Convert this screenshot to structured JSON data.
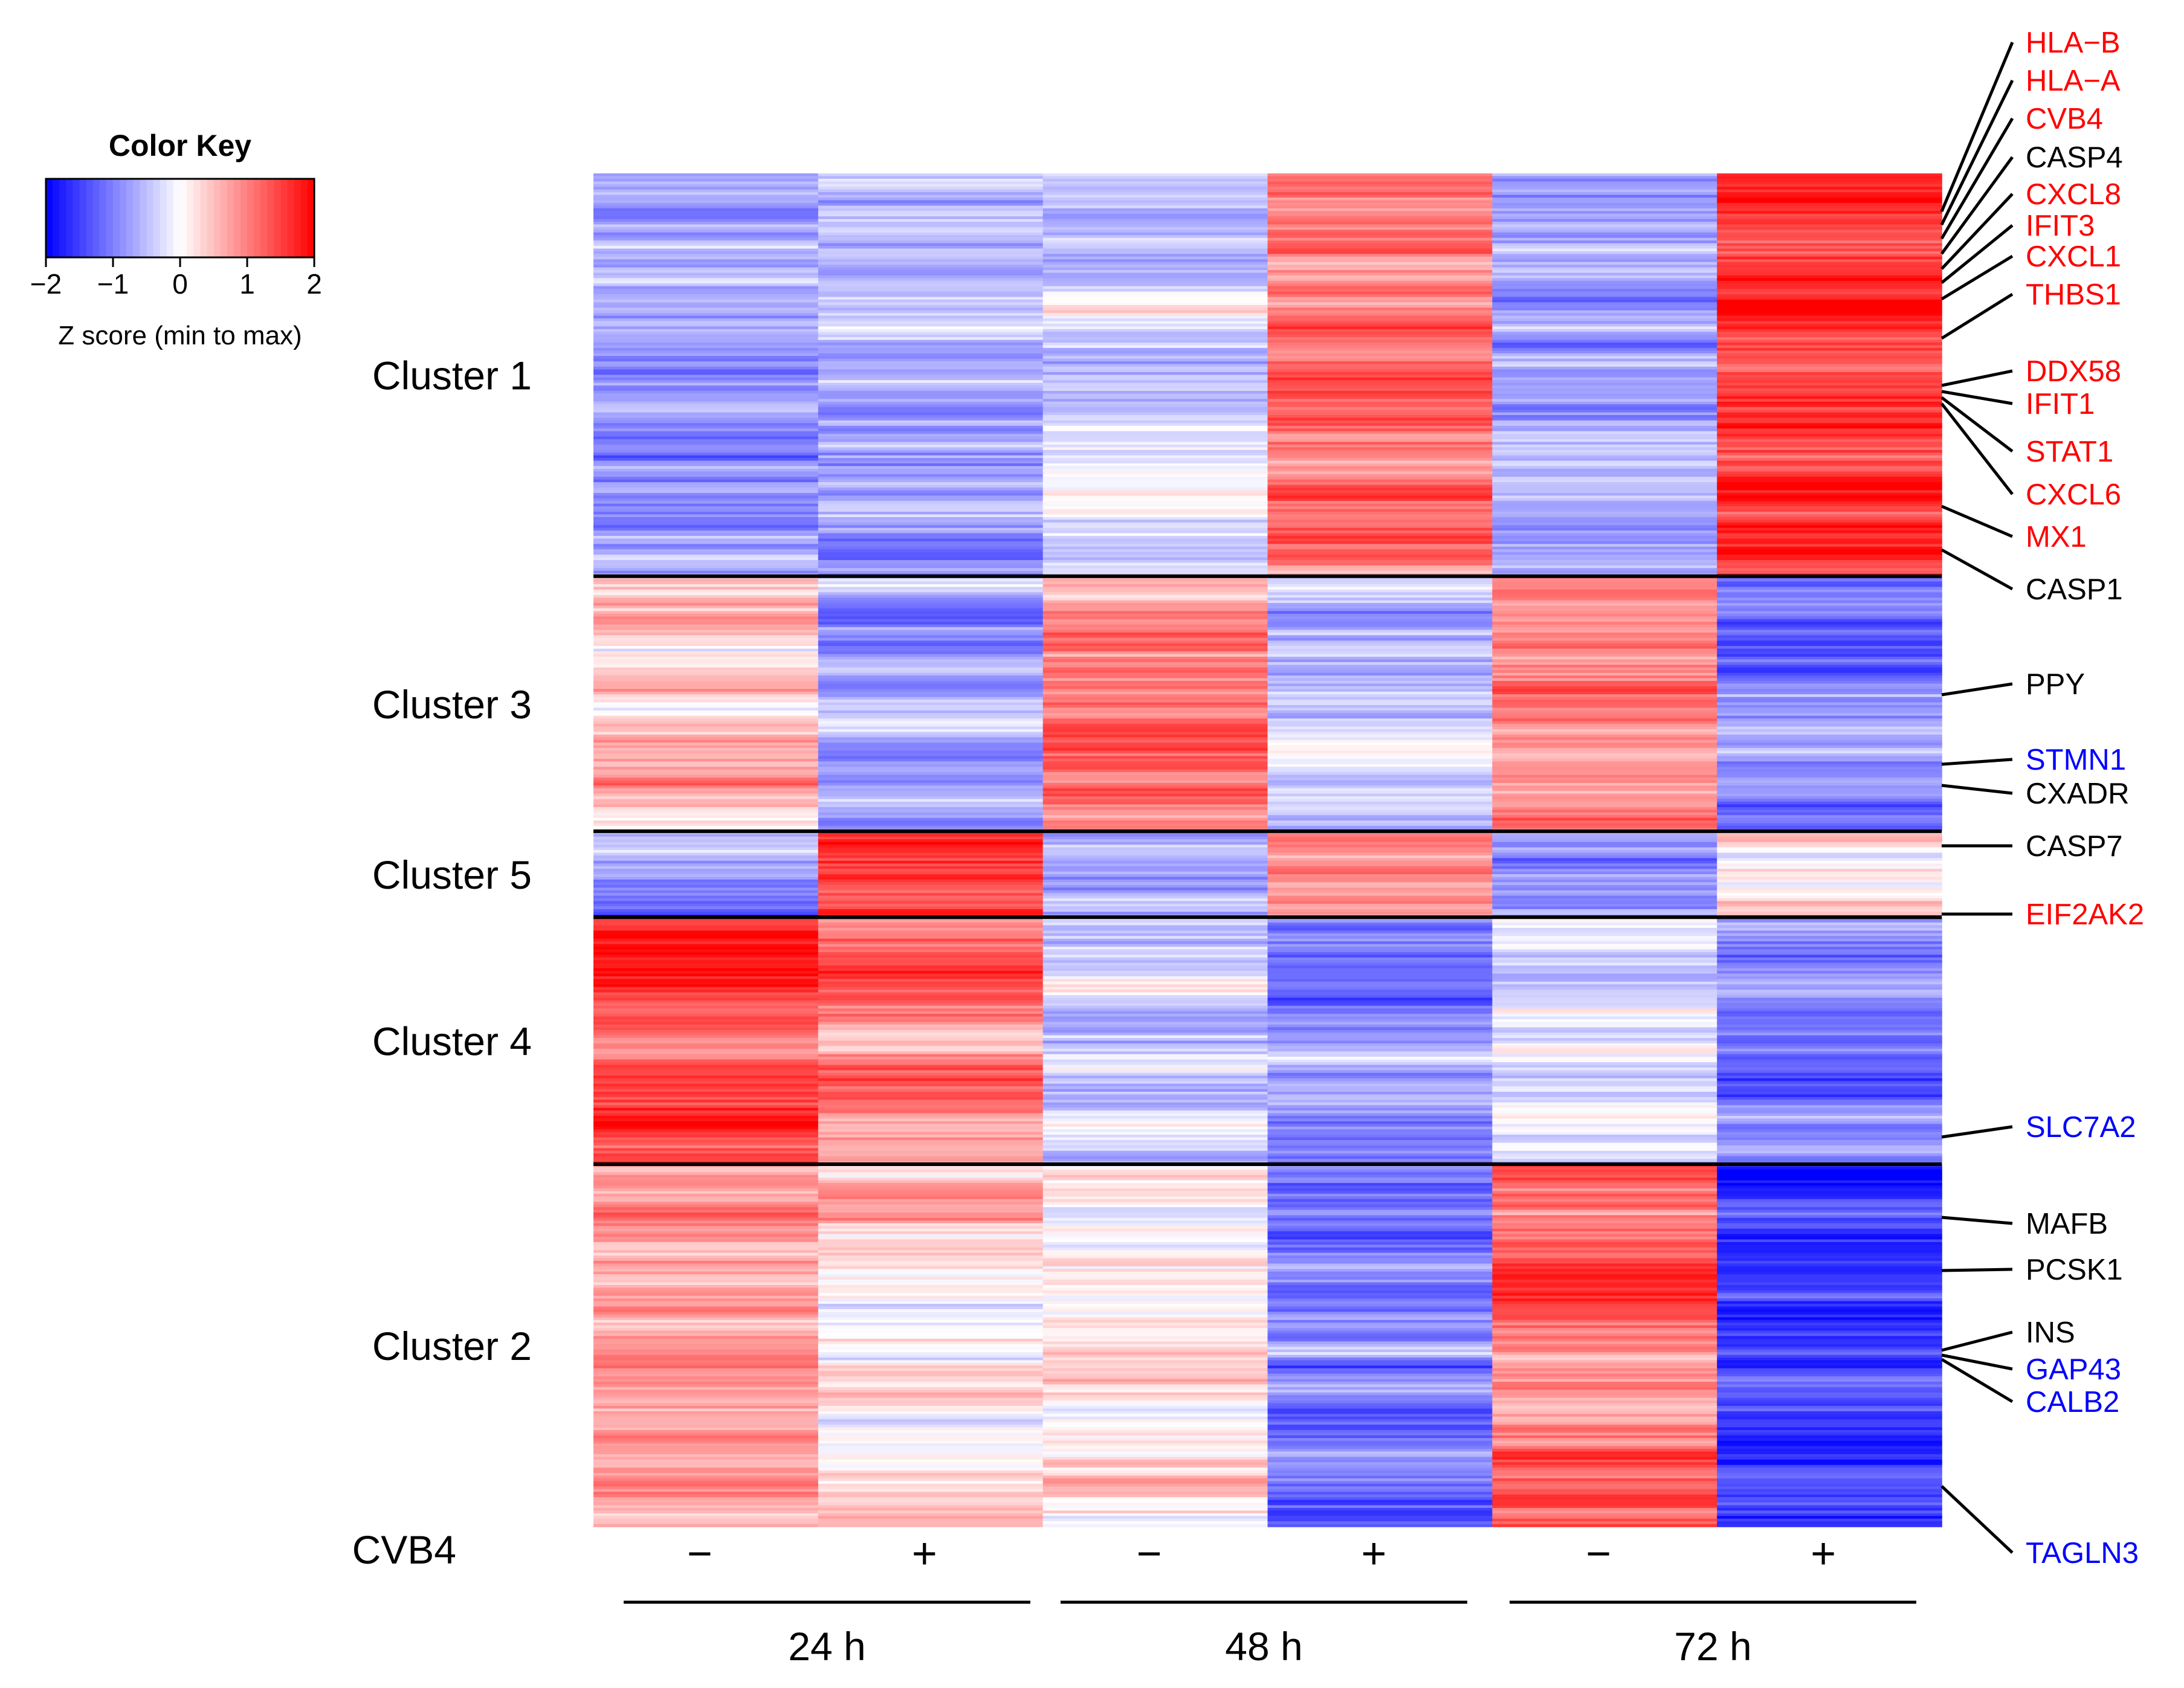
{
  "chart_data": {
    "type": "heatmap",
    "color_key": {
      "title": "Color Key",
      "ticks": [
        "−2",
        "−1",
        "0",
        "1",
        "2"
      ],
      "tick_values": [
        -2,
        -1,
        0,
        1,
        2
      ],
      "label": "Z score (min to max)",
      "low_color": "#0000ff",
      "mid_color": "#ffffff",
      "high_color": "#ff0000"
    },
    "columns": [
      {
        "time": "24 h",
        "cvb4": "−"
      },
      {
        "time": "24 h",
        "cvb4": "+"
      },
      {
        "time": "48 h",
        "cvb4": "−"
      },
      {
        "time": "48 h",
        "cvb4": "+"
      },
      {
        "time": "72 h",
        "cvb4": "−"
      },
      {
        "time": "72 h",
        "cvb4": "+"
      }
    ],
    "row_factor_label": "CVB4",
    "time_groups": [
      "24 h",
      "48 h",
      "72 h"
    ],
    "clusters": [
      {
        "name": "Cluster 1",
        "rows": 150,
        "mean_z": [
          -0.8,
          -0.6,
          -0.4,
          1.0,
          -0.7,
          1.6
        ]
      },
      {
        "name": "Cluster 3",
        "rows": 95,
        "mean_z": [
          0.4,
          -0.7,
          1.0,
          -0.6,
          1.0,
          -1.1
        ]
      },
      {
        "name": "Cluster 5",
        "rows": 32,
        "mean_z": [
          -0.7,
          1.5,
          -0.7,
          0.9,
          -0.6,
          0.4
        ]
      },
      {
        "name": "Cluster 4",
        "rows": 92,
        "mean_z": [
          1.5,
          0.9,
          -0.4,
          -0.9,
          -0.2,
          -0.8
        ]
      },
      {
        "name": "Cluster 2",
        "rows": 135,
        "mean_z": [
          0.8,
          0.2,
          0.1,
          -1.0,
          1.2,
          -1.5
        ]
      }
    ],
    "gene_labels": [
      {
        "name": "HLA−B",
        "color": "#ff0000"
      },
      {
        "name": "HLA−A",
        "color": "#ff0000"
      },
      {
        "name": "CVB4",
        "color": "#ff0000"
      },
      {
        "name": "CASP4",
        "color": "#000000"
      },
      {
        "name": "CXCL8",
        "color": "#ff0000"
      },
      {
        "name": "IFIT3",
        "color": "#ff0000"
      },
      {
        "name": "CXCL1",
        "color": "#ff0000"
      },
      {
        "name": "THBS1",
        "color": "#ff0000"
      },
      {
        "name": "DDX58",
        "color": "#ff0000"
      },
      {
        "name": "IFIT1",
        "color": "#ff0000"
      },
      {
        "name": "STAT1",
        "color": "#ff0000"
      },
      {
        "name": "CXCL6",
        "color": "#ff0000"
      },
      {
        "name": "MX1",
        "color": "#ff0000"
      },
      {
        "name": "CASP1",
        "color": "#000000"
      },
      {
        "name": "PPY",
        "color": "#000000"
      },
      {
        "name": "STMN1",
        "color": "#0000ff"
      },
      {
        "name": "CXADR",
        "color": "#000000"
      },
      {
        "name": "CASP7",
        "color": "#000000"
      },
      {
        "name": "EIF2AK2",
        "color": "#ff0000"
      },
      {
        "name": "SLC7A2",
        "color": "#0000ff"
      },
      {
        "name": "MAFB",
        "color": "#000000"
      },
      {
        "name": "PCSK1",
        "color": "#000000"
      },
      {
        "name": "INS",
        "color": "#000000"
      },
      {
        "name": "GAP43",
        "color": "#0000ff"
      },
      {
        "name": "CALB2",
        "color": "#0000ff"
      },
      {
        "name": "TAGLN3",
        "color": "#0000ff"
      }
    ]
  }
}
